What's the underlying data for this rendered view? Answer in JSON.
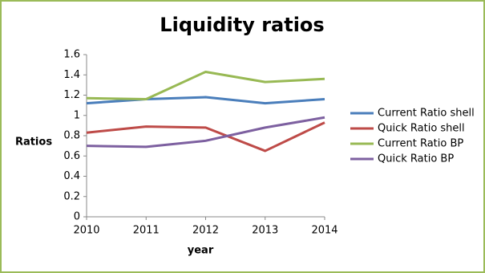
{
  "chart_data": {
    "type": "line",
    "title": "Liquidity ratios",
    "x_label": "year",
    "y_label": "Ratios",
    "categories": [
      "2010",
      "2011",
      "2012",
      "2013",
      "2014"
    ],
    "series": [
      {
        "name": "Current Ratio shell",
        "color": "#4a7ebb",
        "values": [
          1.12,
          1.16,
          1.18,
          1.12,
          1.16
        ]
      },
      {
        "name": "Quick Ratio shell",
        "color": "#be4b48",
        "values": [
          0.83,
          0.89,
          0.88,
          0.65,
          0.93
        ]
      },
      {
        "name": "Current Ratio BP",
        "color": "#98b954",
        "values": [
          1.17,
          1.16,
          1.43,
          1.33,
          1.36
        ]
      },
      {
        "name": "Quick Ratio BP",
        "color": "#7d60a0",
        "values": [
          0.7,
          0.69,
          0.75,
          0.88,
          0.98
        ]
      }
    ],
    "ylim": [
      0,
      1.6
    ],
    "yticks": [
      0,
      0.2,
      0.4,
      0.6,
      0.8,
      1,
      1.2,
      1.4,
      1.6
    ],
    "grid": false,
    "legend_position": "right"
  }
}
